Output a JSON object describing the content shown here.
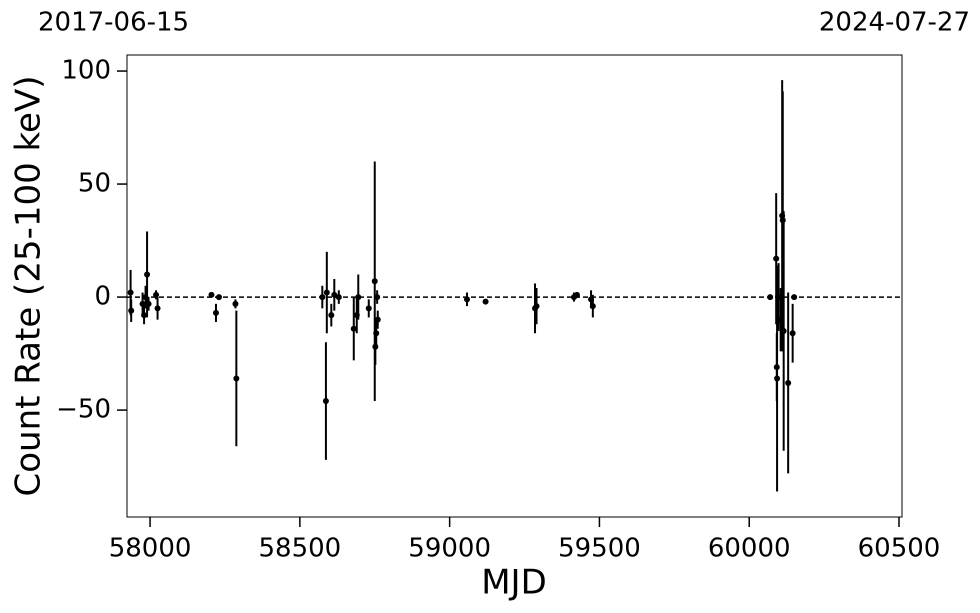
{
  "chart_data": {
    "type": "errorbar",
    "x_label": "MJD",
    "y_label": "Count Rate (25-100 keV)",
    "date_labels": [
      "2017-06-15",
      "2024-07-27"
    ],
    "xlim": [
      57923,
      60510
    ],
    "ylim": [
      -97.3,
      107.1
    ],
    "xticks": [
      58000,
      58500,
      59000,
      59500,
      60000,
      60500
    ],
    "yticks": [
      {
        "value": -50,
        "label": "−50"
      },
      0,
      50,
      100
    ],
    "hline": 0,
    "series": [
      {
        "color": "#000000",
        "x": [
          57935,
          57937,
          57975,
          57980,
          57990,
          57985,
          57995,
          58020,
          58025,
          58205,
          58220,
          58230,
          58285,
          58288,
          58575,
          58587,
          58590,
          58605,
          58615,
          58630,
          58680,
          58690,
          58695,
          58730,
          58750,
          58752,
          58755,
          58760,
          58758,
          59058,
          59120,
          59285,
          59290,
          59415,
          59425,
          59472,
          59478,
          60090,
          60092,
          60093,
          60098,
          60105,
          60110,
          60112,
          60115,
          60130,
          60145,
          60150,
          60070
        ],
        "values": [
          2,
          -6,
          -3,
          -8,
          10,
          0,
          -3,
          1,
          -5,
          1,
          -7,
          0,
          -3,
          -36,
          0,
          -46,
          2,
          -8,
          1,
          0,
          -14,
          -8,
          0,
          -5,
          7,
          -22,
          -16,
          -10,
          0,
          -1,
          -2,
          -5,
          -4,
          0,
          1,
          -1,
          -4,
          17,
          -31,
          -36,
          0,
          -10,
          36,
          34,
          -15,
          -38,
          -16,
          0,
          0
        ],
        "errors": [
          10,
          5,
          5,
          4,
          19,
          5,
          3,
          2,
          5,
          1,
          4,
          1,
          2,
          30,
          5,
          26,
          18,
          5,
          7,
          3,
          14,
          8,
          10,
          4,
          53,
          8,
          5,
          4,
          3,
          3,
          1,
          11,
          8,
          2,
          1,
          4,
          5,
          29,
          15,
          50,
          15,
          14,
          60,
          57,
          53,
          40,
          13,
          1,
          1
        ]
      }
    ]
  }
}
